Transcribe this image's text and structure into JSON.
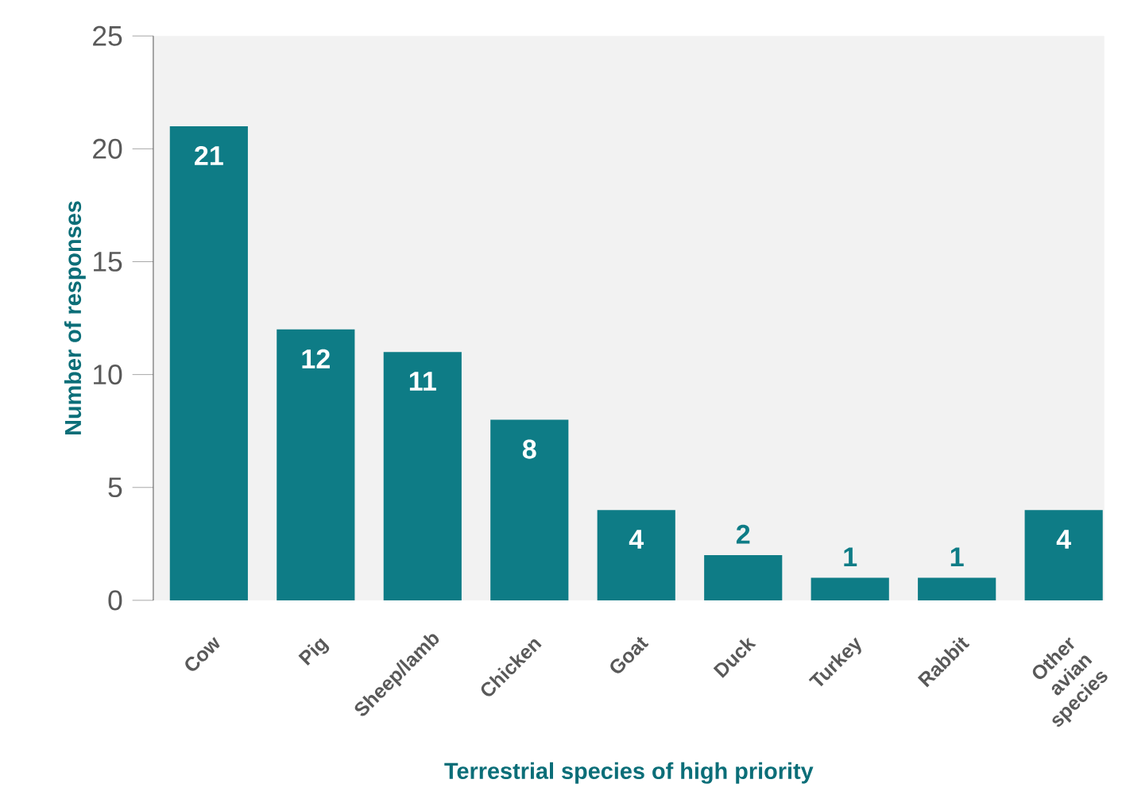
{
  "chart_data": {
    "type": "bar",
    "xlabel": "Terrestrial species of high priority",
    "ylabel": "Number of responses",
    "categories": [
      "Cow",
      "Pig",
      "Sheep/lamb",
      "Chicken",
      "Goat",
      "Duck",
      "Turkey",
      "Rabbit",
      "Other avian species"
    ],
    "values": [
      21,
      12,
      11,
      8,
      4,
      2,
      1,
      1,
      4
    ],
    "color": "#0e7c86",
    "ylim": [
      0,
      25
    ],
    "yticks": [
      0,
      5,
      10,
      15,
      20,
      25
    ],
    "data_labels": true
  }
}
